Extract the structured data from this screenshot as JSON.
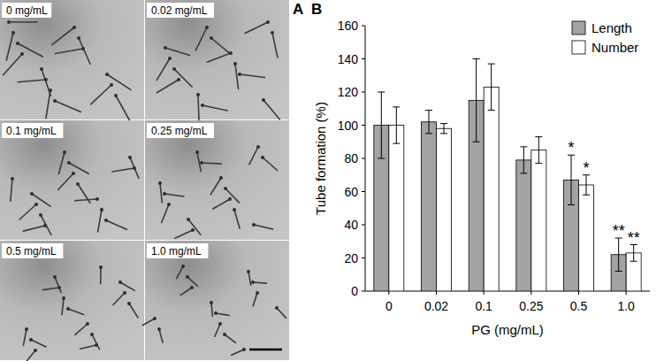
{
  "panel_labels": [
    "A",
    "B"
  ],
  "panel_a": {
    "images": [
      {
        "label": "0 mg/mL"
      },
      {
        "label": "0.02 mg/mL"
      },
      {
        "label": "0.1 mg/mL"
      },
      {
        "label": "0.25 mg/mL"
      },
      {
        "label": "0.5 mg/mL"
      },
      {
        "label": "1.0 mg/mL"
      }
    ]
  },
  "chart_data": {
    "type": "bar",
    "x_label": "PG (mg/mL)",
    "y_label": "Tube formation (%)",
    "categories": [
      "0",
      "0.02",
      "0.1",
      "0.25",
      "0.5",
      "1.0"
    ],
    "series": [
      {
        "name": "Length",
        "color": "#a3a3a3",
        "values": [
          100,
          102,
          115,
          79,
          67,
          22
        ],
        "errors": [
          20,
          7,
          25,
          8,
          15,
          10
        ],
        "significance": [
          null,
          null,
          null,
          null,
          "*",
          "**"
        ]
      },
      {
        "name": "Number",
        "color": "#ffffff",
        "values": [
          100,
          98,
          123,
          85,
          64,
          23
        ],
        "errors": [
          11,
          3,
          14,
          8,
          6,
          5
        ],
        "significance": [
          null,
          null,
          null,
          null,
          "*",
          "**"
        ]
      }
    ],
    "ylim": [
      0,
      160
    ],
    "yticks": [
      0,
      20,
      40,
      60,
      80,
      100,
      120,
      140,
      160
    ],
    "grid": false,
    "legend": "top-right"
  }
}
